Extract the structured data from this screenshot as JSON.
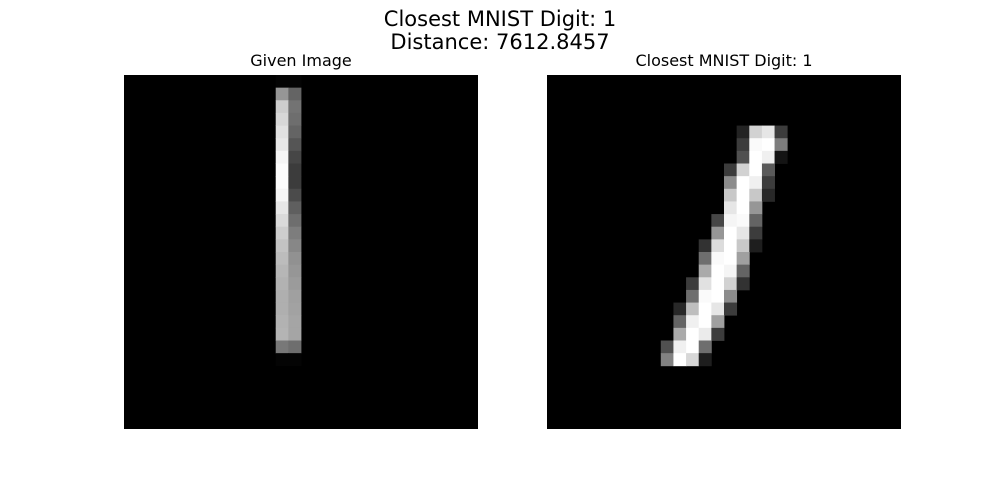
{
  "figure": {
    "title_line1": "Closest MNIST Digit: 1",
    "title_line2": "Distance: 7612.8457"
  },
  "chart_data": [
    {
      "type": "heatmap",
      "title": "Given Image",
      "colormap": "gray",
      "value_range": [
        0,
        255
      ],
      "grid_size": [
        28,
        28
      ],
      "background_value": 0,
      "pixels": [
        {
          "r": 0,
          "c": 12,
          "v": 4
        },
        {
          "r": 0,
          "c": 13,
          "v": 4
        },
        {
          "r": 1,
          "c": 12,
          "v": 150
        },
        {
          "r": 1,
          "c": 13,
          "v": 100
        },
        {
          "r": 2,
          "c": 12,
          "v": 205
        },
        {
          "r": 2,
          "c": 13,
          "v": 115
        },
        {
          "r": 3,
          "c": 12,
          "v": 215
        },
        {
          "r": 3,
          "c": 13,
          "v": 110
        },
        {
          "r": 4,
          "c": 12,
          "v": 225
        },
        {
          "r": 4,
          "c": 13,
          "v": 100
        },
        {
          "r": 5,
          "c": 12,
          "v": 232
        },
        {
          "r": 5,
          "c": 13,
          "v": 85
        },
        {
          "r": 6,
          "c": 12,
          "v": 245
        },
        {
          "r": 6,
          "c": 13,
          "v": 70
        },
        {
          "r": 7,
          "c": 12,
          "v": 252
        },
        {
          "r": 7,
          "c": 13,
          "v": 60
        },
        {
          "r": 8,
          "c": 12,
          "v": 252
        },
        {
          "r": 8,
          "c": 13,
          "v": 60
        },
        {
          "r": 9,
          "c": 12,
          "v": 245
        },
        {
          "r": 9,
          "c": 13,
          "v": 75
        },
        {
          "r": 10,
          "c": 12,
          "v": 230
        },
        {
          "r": 10,
          "c": 13,
          "v": 95
        },
        {
          "r": 11,
          "c": 12,
          "v": 218
        },
        {
          "r": 11,
          "c": 13,
          "v": 110
        },
        {
          "r": 12,
          "c": 12,
          "v": 205
        },
        {
          "r": 12,
          "c": 13,
          "v": 125
        },
        {
          "r": 13,
          "c": 12,
          "v": 195
        },
        {
          "r": 13,
          "c": 13,
          "v": 135
        },
        {
          "r": 14,
          "c": 12,
          "v": 188
        },
        {
          "r": 14,
          "c": 13,
          "v": 145
        },
        {
          "r": 15,
          "c": 12,
          "v": 182
        },
        {
          "r": 15,
          "c": 13,
          "v": 150
        },
        {
          "r": 16,
          "c": 12,
          "v": 178
        },
        {
          "r": 16,
          "c": 13,
          "v": 155
        },
        {
          "r": 17,
          "c": 12,
          "v": 175
        },
        {
          "r": 17,
          "c": 13,
          "v": 160
        },
        {
          "r": 18,
          "c": 12,
          "v": 175
        },
        {
          "r": 18,
          "c": 13,
          "v": 162
        },
        {
          "r": 19,
          "c": 12,
          "v": 178
        },
        {
          "r": 19,
          "c": 13,
          "v": 165
        },
        {
          "r": 20,
          "c": 12,
          "v": 180
        },
        {
          "r": 20,
          "c": 13,
          "v": 165
        },
        {
          "r": 21,
          "c": 12,
          "v": 120
        },
        {
          "r": 21,
          "c": 13,
          "v": 110
        },
        {
          "r": 22,
          "c": 12,
          "v": 4
        },
        {
          "r": 22,
          "c": 13,
          "v": 4
        }
      ]
    },
    {
      "type": "heatmap",
      "title": "Closest MNIST Digit: 1",
      "colormap": "gray",
      "value_range": [
        0,
        255
      ],
      "grid_size": [
        28,
        28
      ],
      "background_value": 0,
      "pixels": [
        {
          "r": 4,
          "c": 15,
          "v": 35
        },
        {
          "r": 4,
          "c": 16,
          "v": 210
        },
        {
          "r": 4,
          "c": 17,
          "v": 230
        },
        {
          "r": 4,
          "c": 18,
          "v": 60
        },
        {
          "r": 5,
          "c": 15,
          "v": 60
        },
        {
          "r": 5,
          "c": 16,
          "v": 250
        },
        {
          "r": 5,
          "c": 17,
          "v": 255
        },
        {
          "r": 5,
          "c": 18,
          "v": 125
        },
        {
          "r": 6,
          "c": 15,
          "v": 80
        },
        {
          "r": 6,
          "c": 16,
          "v": 255
        },
        {
          "r": 6,
          "c": 17,
          "v": 240
        },
        {
          "r": 6,
          "c": 18,
          "v": 20
        },
        {
          "r": 7,
          "c": 14,
          "v": 60
        },
        {
          "r": 7,
          "c": 15,
          "v": 210
        },
        {
          "r": 7,
          "c": 16,
          "v": 255
        },
        {
          "r": 7,
          "c": 17,
          "v": 90
        },
        {
          "r": 8,
          "c": 14,
          "v": 140
        },
        {
          "r": 8,
          "c": 15,
          "v": 255
        },
        {
          "r": 8,
          "c": 16,
          "v": 240
        },
        {
          "r": 8,
          "c": 17,
          "v": 60
        },
        {
          "r": 9,
          "c": 14,
          "v": 200
        },
        {
          "r": 9,
          "c": 15,
          "v": 255
        },
        {
          "r": 9,
          "c": 16,
          "v": 200
        },
        {
          "r": 9,
          "c": 17,
          "v": 40
        },
        {
          "r": 10,
          "c": 14,
          "v": 230
        },
        {
          "r": 10,
          "c": 15,
          "v": 255
        },
        {
          "r": 10,
          "c": 16,
          "v": 150
        },
        {
          "r": 11,
          "c": 13,
          "v": 70
        },
        {
          "r": 11,
          "c": 14,
          "v": 245
        },
        {
          "r": 11,
          "c": 15,
          "v": 250
        },
        {
          "r": 11,
          "c": 16,
          "v": 100
        },
        {
          "r": 12,
          "c": 13,
          "v": 150
        },
        {
          "r": 12,
          "c": 14,
          "v": 255
        },
        {
          "r": 12,
          "c": 15,
          "v": 230
        },
        {
          "r": 12,
          "c": 16,
          "v": 60
        },
        {
          "r": 13,
          "c": 12,
          "v": 50
        },
        {
          "r": 13,
          "c": 13,
          "v": 220
        },
        {
          "r": 13,
          "c": 14,
          "v": 255
        },
        {
          "r": 13,
          "c": 15,
          "v": 200
        },
        {
          "r": 13,
          "c": 16,
          "v": 30
        },
        {
          "r": 14,
          "c": 12,
          "v": 110
        },
        {
          "r": 14,
          "c": 13,
          "v": 250
        },
        {
          "r": 14,
          "c": 14,
          "v": 255
        },
        {
          "r": 14,
          "c": 15,
          "v": 160
        },
        {
          "r": 15,
          "c": 12,
          "v": 170
        },
        {
          "r": 15,
          "c": 13,
          "v": 255
        },
        {
          "r": 15,
          "c": 14,
          "v": 245
        },
        {
          "r": 15,
          "c": 15,
          "v": 100
        },
        {
          "r": 16,
          "c": 11,
          "v": 60
        },
        {
          "r": 16,
          "c": 12,
          "v": 225
        },
        {
          "r": 16,
          "c": 13,
          "v": 255
        },
        {
          "r": 16,
          "c": 14,
          "v": 210
        },
        {
          "r": 16,
          "c": 15,
          "v": 50
        },
        {
          "r": 17,
          "c": 11,
          "v": 110
        },
        {
          "r": 17,
          "c": 12,
          "v": 250
        },
        {
          "r": 17,
          "c": 13,
          "v": 255
        },
        {
          "r": 17,
          "c": 14,
          "v": 140
        },
        {
          "r": 18,
          "c": 10,
          "v": 40
        },
        {
          "r": 18,
          "c": 11,
          "v": 190
        },
        {
          "r": 18,
          "c": 12,
          "v": 255
        },
        {
          "r": 18,
          "c": 13,
          "v": 230
        },
        {
          "r": 18,
          "c": 14,
          "v": 60
        },
        {
          "r": 19,
          "c": 10,
          "v": 100
        },
        {
          "r": 19,
          "c": 11,
          "v": 240
        },
        {
          "r": 19,
          "c": 12,
          "v": 255
        },
        {
          "r": 19,
          "c": 13,
          "v": 160
        },
        {
          "r": 20,
          "c": 10,
          "v": 170
        },
        {
          "r": 20,
          "c": 11,
          "v": 255
        },
        {
          "r": 20,
          "c": 12,
          "v": 235
        },
        {
          "r": 20,
          "c": 13,
          "v": 60
        },
        {
          "r": 21,
          "c": 9,
          "v": 80
        },
        {
          "r": 21,
          "c": 10,
          "v": 240
        },
        {
          "r": 21,
          "c": 11,
          "v": 255
        },
        {
          "r": 21,
          "c": 12,
          "v": 110
        },
        {
          "r": 22,
          "c": 9,
          "v": 130
        },
        {
          "r": 22,
          "c": 10,
          "v": 255
        },
        {
          "r": 22,
          "c": 11,
          "v": 215
        },
        {
          "r": 22,
          "c": 12,
          "v": 30
        }
      ]
    }
  ]
}
